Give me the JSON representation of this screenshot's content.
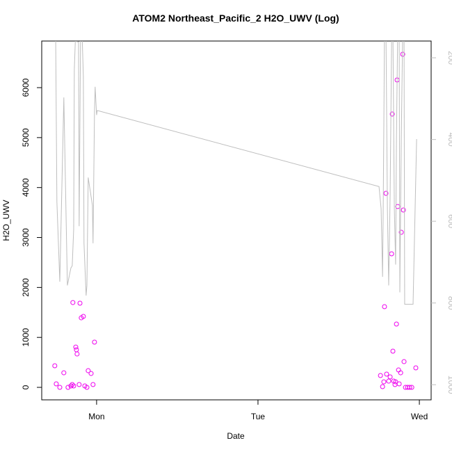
{
  "chart_data": {
    "type": "scatter",
    "title": "ATOM2 Northeast_Pacific_2 H2O_UWV (Log)",
    "x_label": "Date",
    "y_label": "H2O_UWV",
    "xlim": [
      0.66,
      3.073
    ],
    "xticks": [
      {
        "value": 1,
        "label": "Mon"
      },
      {
        "value": 2,
        "label": "Tue"
      },
      {
        "value": 3,
        "label": "Wed"
      }
    ],
    "ylim": [
      -250,
      6933
    ],
    "yticks": [
      0,
      1000,
      2000,
      3000,
      4000,
      5000,
      6000
    ],
    "y2lim": [
      1037,
      159
    ],
    "y2ticks": [
      200,
      400,
      600,
      800,
      1000
    ],
    "y2_color": "#bebebe",
    "series": [
      {
        "color": "#ee00ee",
        "x": [
          0.741,
          0.75,
          0.772,
          0.797,
          0.823,
          0.841,
          0.849,
          0.853,
          0.858,
          0.871,
          0.875,
          0.879,
          0.892,
          0.897,
          0.905,
          0.918,
          0.927,
          0.94,
          0.948,
          0.966,
          0.978,
          0.987,
          2.759,
          2.772,
          2.78,
          2.784,
          2.793,
          2.797,
          2.81,
          2.819,
          2.828,
          2.832,
          2.836,
          2.841,
          2.849,
          2.853,
          2.858,
          2.862,
          2.866,
          2.871,
          2.875,
          2.884,
          2.888,
          2.897,
          2.901,
          2.905,
          2.914,
          2.927,
          2.94,
          2.953,
          2.978
        ],
        "values": [
          432,
          70,
          0,
          292,
          0,
          28,
          56,
          1698,
          28,
          807,
          752,
          668,
          56,
          1685,
          1392,
          1420,
          28,
          0,
          334,
          278,
          56,
          905,
          237,
          14,
          111,
          1615,
          3884,
          265,
          125,
          209,
          2673,
          5471,
          724,
          125,
          56,
          111,
          1267,
          6153,
          3620,
          348,
          70,
          292,
          3104,
          6669,
          3550,
          515,
          0,
          0,
          0,
          0,
          390
        ]
      },
      {
        "color": "#bebebe",
        "axis": "y2",
        "x": [
          0.746,
          0.754,
          0.772,
          0.797,
          0.819,
          0.832,
          0.841,
          0.849,
          0.858,
          0.862,
          0.871,
          0.879,
          0.888,
          0.892,
          0.901,
          0.909,
          0.918,
          0.922,
          0.935,
          0.94,
          0.948,
          0.961,
          0.974,
          0.978,
          0.987,
          0.991,
          1.0,
          1.004,
          2.75,
          2.763,
          2.772,
          2.776,
          2.78,
          2.784,
          2.793,
          2.802,
          2.81,
          2.819,
          2.828,
          2.836,
          2.845,
          2.853,
          2.858,
          2.866,
          2.875,
          2.879,
          2.888,
          2.897,
          2.905,
          2.909,
          2.953,
          2.961,
          2.983
        ],
        "values": [
          127,
          552,
          748,
          297,
          757,
          731,
          714,
          709,
          620,
          229,
          127,
          161,
          161,
          612,
          127,
          127,
          246,
          654,
          782,
          757,
          493,
          527,
          561,
          654,
          331,
          271,
          340,
          329,
          515,
          569,
          736,
          569,
          365,
          127,
          127,
          569,
          757,
          535,
          161,
          127,
          569,
          706,
          399,
          127,
          127,
          774,
          399,
          127,
          127,
          803,
          803,
          803,
          399
        ]
      }
    ]
  }
}
